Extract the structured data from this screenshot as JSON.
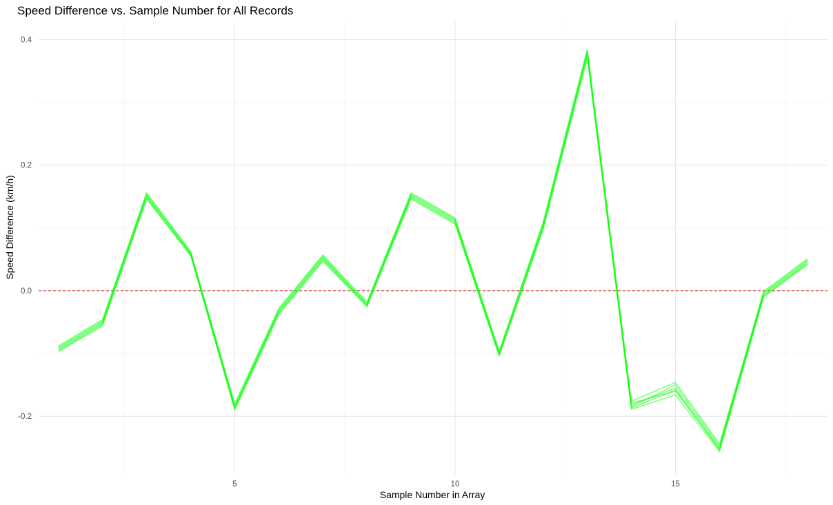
{
  "chart_data": {
    "type": "line",
    "title": "Speed Difference vs. Sample Number for All Records",
    "xlabel": "Sample Number in Array",
    "ylabel": "Speed Difference (km/h)",
    "xlim": [
      0.55,
      18.45
    ],
    "ylim": [
      -0.292,
      0.428
    ],
    "x_ticks": [
      5,
      10,
      15
    ],
    "x_tick_labels": [
      "5",
      "10",
      "15"
    ],
    "x_minor_ticks": [
      2.5,
      7.5,
      12.5,
      17.5
    ],
    "y_ticks": [
      -0.2,
      0.0,
      0.2,
      0.4
    ],
    "y_tick_labels": [
      "-0.2",
      "0.0",
      "0.2",
      "0.4"
    ],
    "y_minor_ticks": [
      -0.1,
      0.1,
      0.3
    ],
    "grid": true,
    "reference_line": {
      "y": 0.0,
      "color": "#e31a1c",
      "style": "dashed"
    },
    "line_color": "#00ff00",
    "x": [
      1,
      2,
      3,
      4,
      5,
      6,
      7,
      8,
      9,
      10,
      11,
      12,
      13,
      14,
      15,
      16,
      17,
      18
    ],
    "series": [
      {
        "values": [
          -0.092,
          -0.05,
          0.152,
          0.06,
          -0.185,
          -0.032,
          0.053,
          -0.022,
          0.152,
          0.112,
          -0.1,
          0.105,
          0.382,
          -0.182,
          -0.155,
          -0.25,
          -0.005,
          0.047
        ]
      },
      {
        "values": [
          -0.097,
          -0.056,
          0.146,
          0.056,
          -0.19,
          -0.038,
          0.047,
          -0.026,
          0.146,
          0.106,
          -0.104,
          0.098,
          0.37,
          -0.189,
          -0.166,
          -0.256,
          -0.01,
          0.042
        ]
      },
      {
        "values": [
          -0.088,
          -0.046,
          0.156,
          0.063,
          -0.18,
          -0.028,
          0.057,
          -0.018,
          0.156,
          0.116,
          -0.096,
          0.11,
          0.385,
          -0.176,
          -0.146,
          -0.244,
          -0.001,
          0.051
        ]
      },
      {
        "values": [
          -0.094,
          -0.052,
          0.15,
          0.058,
          -0.187,
          -0.034,
          0.051,
          -0.023,
          0.15,
          0.11,
          -0.102,
          0.102,
          0.378,
          -0.179,
          -0.16,
          -0.252,
          -0.007,
          0.045
        ]
      },
      {
        "values": [
          -0.09,
          -0.048,
          0.154,
          0.061,
          -0.183,
          -0.03,
          0.055,
          -0.02,
          0.154,
          0.114,
          -0.098,
          0.107,
          0.38,
          -0.185,
          -0.15,
          -0.247,
          -0.003,
          0.049
        ]
      },
      {
        "values": [
          -0.096,
          -0.054,
          0.148,
          0.057,
          -0.188,
          -0.036,
          0.049,
          -0.024,
          0.148,
          0.108,
          -0.103,
          0.1,
          0.375,
          -0.187,
          -0.158,
          -0.254,
          -0.009,
          0.043
        ]
      }
    ]
  }
}
